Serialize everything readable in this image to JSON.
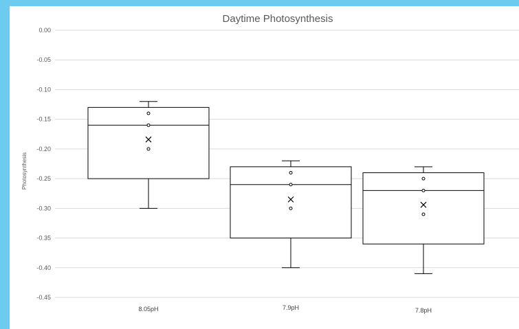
{
  "chart_data": {
    "type": "boxplot",
    "title": "Daytime Photosynthesis",
    "ylabel": "Photosynthesis",
    "xlabel": "",
    "ylim": [
      -0.45,
      0.0
    ],
    "yticks": [
      "0.00",
      "-0.05",
      "-0.10",
      "-0.15",
      "-0.20",
      "-0.25",
      "-0.30",
      "-0.35",
      "-0.40",
      "-0.45"
    ],
    "ytick_values": [
      0.0,
      -0.05,
      -0.1,
      -0.15,
      -0.2,
      -0.25,
      -0.3,
      -0.35,
      -0.4,
      -0.45
    ],
    "grid": true,
    "categories": [
      "8.05pH",
      "7.9pH",
      "7.8pH"
    ],
    "boxes": [
      {
        "category": "8.05pH",
        "whisker_low": -0.3,
        "q1": -0.25,
        "median": -0.16,
        "q3": -0.13,
        "whisker_high": -0.12,
        "mean": -0.184,
        "points": [
          -0.14,
          -0.16,
          -0.2
        ]
      },
      {
        "category": "7.9pH",
        "whisker_low": -0.4,
        "q1": -0.35,
        "median": -0.26,
        "q3": -0.23,
        "whisker_high": -0.22,
        "mean": -0.285,
        "points": [
          -0.24,
          -0.26,
          -0.3
        ]
      },
      {
        "category": "7.8pH",
        "whisker_low": -0.41,
        "q1": -0.36,
        "median": -0.27,
        "q3": -0.24,
        "whisker_high": -0.23,
        "mean": -0.294,
        "points": [
          -0.25,
          -0.27,
          -0.31
        ]
      }
    ]
  }
}
